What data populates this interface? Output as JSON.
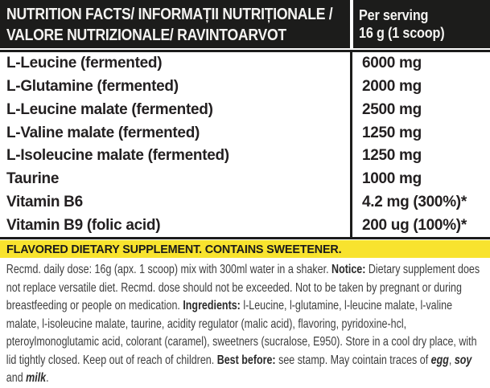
{
  "header": {
    "title_line1": "NUTRITION FACTS/ INFORMAȚII NUTRIȚIONALE /",
    "title_line2": "VALORE NUTRIZIONALE/ RAVINTOARVOT",
    "serving_line1": "Per serving",
    "serving_line2": "16 g (1 scoop)"
  },
  "table": {
    "rows": [
      {
        "label": "L-Leucine (fermented)",
        "value": "6000 mg"
      },
      {
        "label": "L-Glutamine (fermented)",
        "value": "2000 mg"
      },
      {
        "label": "L-Leucine malate (fermented)",
        "value": "2500 mg"
      },
      {
        "label": "L-Valine malate (fermented)",
        "value": "1250 mg"
      },
      {
        "label": "L-Isoleucine malate (fermented)",
        "value": "1250 mg"
      },
      {
        "label": "Taurine",
        "value": "1000 mg"
      },
      {
        "label": "Vitamin B6",
        "value": "4.2 mg (300%)*"
      },
      {
        "label": "Vitamin B9 (folic acid)",
        "value": "200 ug (100%)*"
      }
    ]
  },
  "banner": {
    "text": "FLAVORED DIETARY SUPPLEMENT. CONTAINS SWEETENER."
  },
  "fine_print": {
    "segments": [
      {
        "text": "Recmd. daily dose: 16g (apx. 1 scoop) mix with 300ml water in a shaker. ",
        "style": "normal"
      },
      {
        "text": "Notice: ",
        "style": "bold"
      },
      {
        "text": "Dietary supplement does not replace versatile diet. Recmd. dose should not be exceeded. Not to be taken by pregnant or during breastfeeding or people on medication. ",
        "style": "normal"
      },
      {
        "text": "Ingredients: ",
        "style": "bold"
      },
      {
        "text": "l-Leucine, l-glutamine, l-leucine malate, l-valine malate, l-isoleucine malate, taurine, acidity regulator (malic acid), flavoring, pyridoxine-hcl, pteroylmonoglutamic acid, colorant (caramel), sweetners (sucralose, E950). Store in a cool dry place, with lid tightly closed. Keep out of reach of children. ",
        "style": "normal"
      },
      {
        "text": "Best before: ",
        "style": "bold"
      },
      {
        "text": "see stamp. May cointain traces of ",
        "style": "normal"
      },
      {
        "text": "egg",
        "style": "bold-italic"
      },
      {
        "text": ", ",
        "style": "normal"
      },
      {
        "text": "soy",
        "style": "bold-italic"
      },
      {
        "text": " and ",
        "style": "normal"
      },
      {
        "text": "milk",
        "style": "bold-italic"
      },
      {
        "text": ".",
        "style": "normal"
      }
    ]
  },
  "colors": {
    "header_bg": "#1c1c1b",
    "banner_bg": "#f8e32e",
    "row_text": "#232021",
    "fine_print_text": "#3d3d3d"
  }
}
